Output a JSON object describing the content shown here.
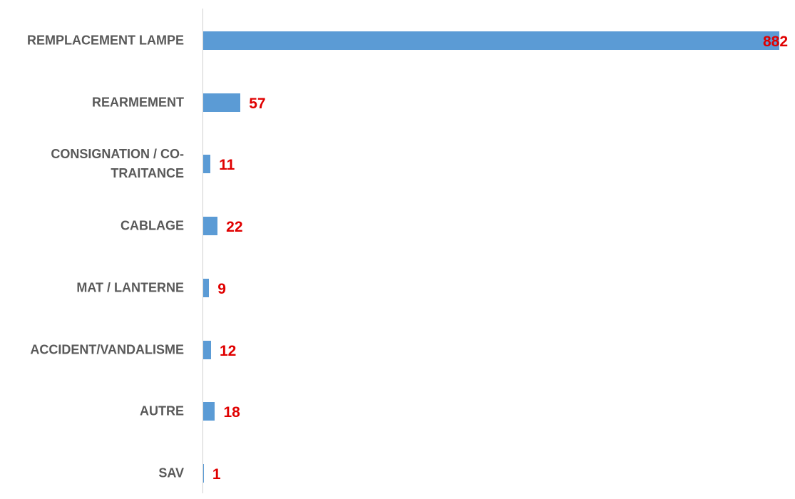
{
  "chart_data": {
    "type": "barh",
    "categories": [
      "REMPLACEMENT LAMPE",
      "REARMEMENT",
      "CONSIGNATION / CO-TRAITANCE",
      "CABLAGE",
      "MAT / LANTERNE",
      "ACCIDENT/VANDALISME",
      "AUTRE",
      "SAV"
    ],
    "values": [
      882,
      57,
      11,
      22,
      9,
      12,
      18,
      1
    ],
    "color": "#5b9bd5",
    "label_color": "#e00000",
    "xlim": [
      0,
      882
    ]
  }
}
